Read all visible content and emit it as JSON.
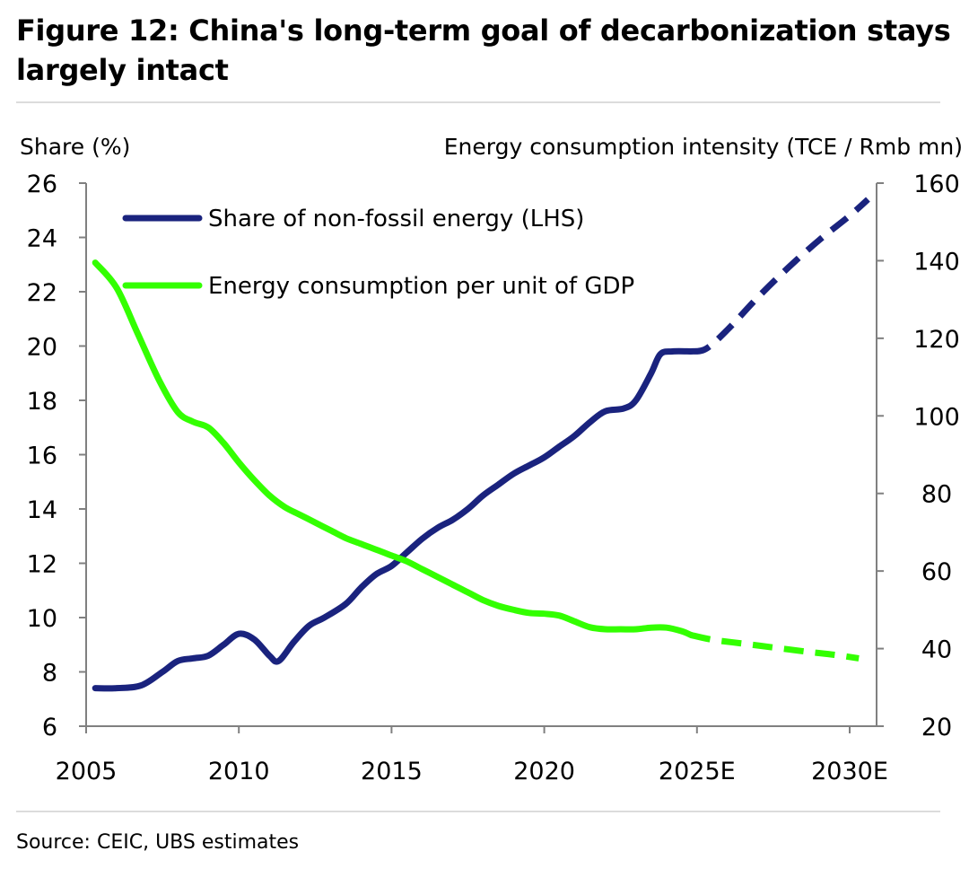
{
  "title": "Figure 12: China's long-term goal of decarbonization stays largely intact",
  "source": "Source: CEIC, UBS estimates",
  "chart_data": {
    "type": "line",
    "ylabel_left": "Share (%)",
    "ylabel_right": "Energy consumption intensity (TCE / Rmb mn)",
    "x_range": [
      2005,
      2030
    ],
    "x_ticks": [
      "2005",
      "2010",
      "2015",
      "2020",
      "2025E",
      "2030E"
    ],
    "x_tick_values": [
      2005,
      2010,
      2015,
      2020,
      2025,
      2030
    ],
    "y_left_range": [
      6,
      26
    ],
    "y_left_ticks": [
      "6",
      "8",
      "10",
      "12",
      "14",
      "16",
      "18",
      "20",
      "22",
      "24",
      "26"
    ],
    "y_right_range": [
      20,
      160
    ],
    "y_right_ticks": [
      "20",
      "40",
      "60",
      "80",
      "100",
      "120",
      "140",
      "160"
    ],
    "grid": false,
    "legend_position": "top-left",
    "colors": {
      "share": "#1a237e",
      "intensity": "#33ff00",
      "axis": "#808080"
    },
    "series": [
      {
        "name": "Share of non-fossil energy (LHS)",
        "axis": "left",
        "color": "#1a237e",
        "actual": [
          [
            2005.3,
            7.4
          ],
          [
            2006.0,
            7.4
          ],
          [
            2006.8,
            7.5
          ],
          [
            2007.5,
            8.0
          ],
          [
            2008.0,
            8.4
          ],
          [
            2008.5,
            8.5
          ],
          [
            2009.0,
            8.6
          ],
          [
            2009.5,
            9.0
          ],
          [
            2010.0,
            9.4
          ],
          [
            2010.5,
            9.2
          ],
          [
            2011.0,
            8.6
          ],
          [
            2011.3,
            8.4
          ],
          [
            2011.8,
            9.1
          ],
          [
            2012.3,
            9.7
          ],
          [
            2012.8,
            10.0
          ],
          [
            2013.5,
            10.5
          ],
          [
            2014.0,
            11.1
          ],
          [
            2014.5,
            11.6
          ],
          [
            2015.0,
            11.9
          ],
          [
            2015.5,
            12.4
          ],
          [
            2016.0,
            12.9
          ],
          [
            2016.5,
            13.3
          ],
          [
            2017.0,
            13.6
          ],
          [
            2017.5,
            14.0
          ],
          [
            2018.0,
            14.5
          ],
          [
            2018.5,
            14.9
          ],
          [
            2019.0,
            15.3
          ],
          [
            2019.5,
            15.6
          ],
          [
            2020.0,
            15.9
          ],
          [
            2020.5,
            16.3
          ],
          [
            2021.0,
            16.7
          ],
          [
            2021.5,
            17.2
          ],
          [
            2022.0,
            17.6
          ],
          [
            2022.6,
            17.7
          ],
          [
            2023.0,
            18.0
          ],
          [
            2023.5,
            19.0
          ],
          [
            2023.8,
            19.7
          ],
          [
            2024.2,
            19.8
          ],
          [
            2024.8,
            19.8
          ]
        ],
        "forecast": [
          [
            2024.8,
            19.8
          ],
          [
            2025.3,
            19.9
          ],
          [
            2026.0,
            20.6
          ],
          [
            2027.0,
            21.8
          ],
          [
            2028.0,
            22.9
          ],
          [
            2029.0,
            23.9
          ],
          [
            2030.0,
            24.8
          ],
          [
            2030.6,
            25.4
          ]
        ]
      },
      {
        "name": "Energy consumption per unit of GDP",
        "axis": "right",
        "color": "#33ff00",
        "actual": [
          [
            2005.3,
            139.5
          ],
          [
            2006.0,
            133.0
          ],
          [
            2006.7,
            121.0
          ],
          [
            2007.4,
            109.0
          ],
          [
            2008.0,
            101.0
          ],
          [
            2008.5,
            98.5
          ],
          [
            2009.0,
            97.0
          ],
          [
            2009.5,
            93.0
          ],
          [
            2010.0,
            88.0
          ],
          [
            2010.5,
            83.5
          ],
          [
            2011.0,
            79.5
          ],
          [
            2011.5,
            76.5
          ],
          [
            2012.0,
            74.5
          ],
          [
            2012.5,
            72.5
          ],
          [
            2013.0,
            70.5
          ],
          [
            2013.5,
            68.5
          ],
          [
            2014.0,
            67.0
          ],
          [
            2014.5,
            65.5
          ],
          [
            2015.0,
            64.0
          ],
          [
            2015.5,
            62.5
          ],
          [
            2016.0,
            60.5
          ],
          [
            2016.5,
            58.5
          ],
          [
            2017.0,
            56.5
          ],
          [
            2017.5,
            54.5
          ],
          [
            2018.0,
            52.5
          ],
          [
            2018.5,
            51.0
          ],
          [
            2019.0,
            50.0
          ],
          [
            2019.5,
            49.2
          ],
          [
            2020.0,
            49.0
          ],
          [
            2020.5,
            48.5
          ],
          [
            2021.0,
            47.0
          ],
          [
            2021.5,
            45.5
          ],
          [
            2022.0,
            45.0
          ],
          [
            2022.5,
            45.0
          ],
          [
            2023.0,
            45.0
          ],
          [
            2023.5,
            45.4
          ],
          [
            2024.0,
            45.4
          ],
          [
            2024.5,
            44.5
          ],
          [
            2024.8,
            43.5
          ]
        ],
        "forecast": [
          [
            2024.8,
            43.5
          ],
          [
            2025.5,
            42.3
          ],
          [
            2026.5,
            41.3
          ],
          [
            2027.5,
            40.3
          ],
          [
            2028.5,
            39.3
          ],
          [
            2029.5,
            38.4
          ],
          [
            2030.3,
            37.5
          ]
        ]
      }
    ]
  }
}
